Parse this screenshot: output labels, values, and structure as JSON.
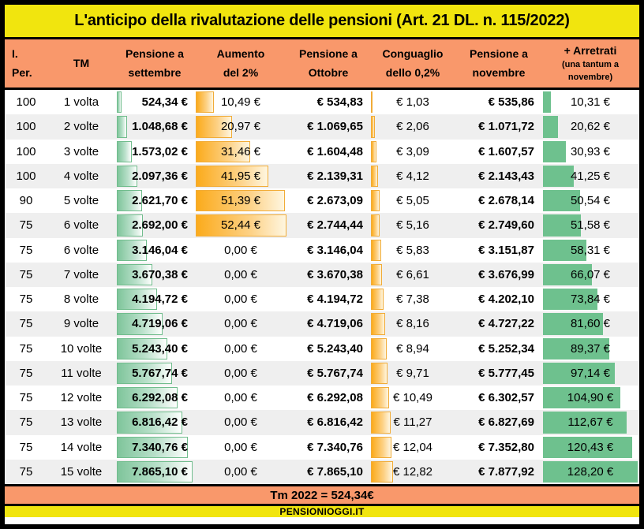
{
  "title": "L'anticipo della rivalutazione delle pensioni (Art. 21 DL. n. 115/2022)",
  "footer": {
    "note": "Tm 2022 = 524,34€",
    "brand": "PENSIONIOGGI.IT"
  },
  "colors": {
    "title_yellow": "#F1E50E",
    "header_salmon": "#F9986B",
    "stripe_gray": "#EFEFEF",
    "green_bar_solid": "#6EC18E",
    "green_bar_border": "#71BD8D",
    "orange_bar": "#FBAB1C",
    "orange_bar_border": "#F1AC38",
    "border_black": "#000000"
  },
  "chart_data": {
    "type": "table",
    "columns": [
      {
        "key": "iper",
        "header_lines": [
          "I.",
          "Per."
        ]
      },
      {
        "key": "tm",
        "header_lines": [
          "TM"
        ]
      },
      {
        "key": "settembre",
        "header_lines": [
          "Pensione a",
          "settembre"
        ]
      },
      {
        "key": "aumento",
        "header_lines": [
          "Aumento",
          "del 2%"
        ]
      },
      {
        "key": "ottobre",
        "header_lines": [
          "Pensione a",
          "Ottobre"
        ]
      },
      {
        "key": "conguaglio",
        "header_lines": [
          "Conguaglio",
          "dello 0,2%"
        ]
      },
      {
        "key": "novembre",
        "header_lines": [
          "Pensione a",
          "novembre"
        ]
      },
      {
        "key": "arretrati",
        "header_lines": [
          "+ Arretrati",
          "(una tantum a",
          "novembre)"
        ],
        "small_lines_from": 1
      }
    ],
    "rows": [
      {
        "iper": "100",
        "tm": "1 volta",
        "settembre": "524,34 €",
        "settembre_v": 524.34,
        "aumento": "10,49 €",
        "aumento_v": 10.49,
        "ottobre": "€ 534,83",
        "conguaglio": "€ 1,03",
        "conguaglio_v": 1.03,
        "novembre": "€ 535,86",
        "arretrati": "10,31 €",
        "arretrati_v": 10.31
      },
      {
        "iper": "100",
        "tm": "2 volte",
        "settembre": "1.048,68 €",
        "settembre_v": 1048.68,
        "aumento": "20,97 €",
        "aumento_v": 20.97,
        "ottobre": "€ 1.069,65",
        "conguaglio": "€ 2,06",
        "conguaglio_v": 2.06,
        "novembre": "€ 1.071,72",
        "arretrati": "20,62 €",
        "arretrati_v": 20.62
      },
      {
        "iper": "100",
        "tm": "3 volte",
        "settembre": "1.573,02 €",
        "settembre_v": 1573.02,
        "aumento": "31,46 €",
        "aumento_v": 31.46,
        "ottobre": "€ 1.604,48",
        "conguaglio": "€ 3,09",
        "conguaglio_v": 3.09,
        "novembre": "€ 1.607,57",
        "arretrati": "30,93 €",
        "arretrati_v": 30.93
      },
      {
        "iper": "100",
        "tm": "4 volte",
        "settembre": "2.097,36 €",
        "settembre_v": 2097.36,
        "aumento": "41,95 €",
        "aumento_v": 41.95,
        "ottobre": "€ 2.139,31",
        "conguaglio": "€ 4,12",
        "conguaglio_v": 4.12,
        "novembre": "€ 2.143,43",
        "arretrati": "41,25 €",
        "arretrati_v": 41.25
      },
      {
        "iper": "90",
        "tm": "5 volte",
        "settembre": "2.621,70 €",
        "settembre_v": 2621.7,
        "aumento": "51,39 €",
        "aumento_v": 51.39,
        "ottobre": "€ 2.673,09",
        "conguaglio": "€ 5,05",
        "conguaglio_v": 5.05,
        "novembre": "€ 2.678,14",
        "arretrati": "50,54 €",
        "arretrati_v": 50.54
      },
      {
        "iper": "75",
        "tm": "6 volte",
        "settembre": "2.692,00 €",
        "settembre_v": 2692.0,
        "aumento": "52,44 €",
        "aumento_v": 52.44,
        "ottobre": "€ 2.744,44",
        "conguaglio": "€ 5,16",
        "conguaglio_v": 5.16,
        "novembre": "€ 2.749,60",
        "arretrati": "51,58 €",
        "arretrati_v": 51.58
      },
      {
        "iper": "75",
        "tm": "6 volte",
        "settembre": "3.146,04 €",
        "settembre_v": 3146.04,
        "aumento": "0,00 €",
        "aumento_v": 0,
        "ottobre": "€ 3.146,04",
        "conguaglio": "€ 5,83",
        "conguaglio_v": 5.83,
        "novembre": "€ 3.151,87",
        "arretrati": "58,31 €",
        "arretrati_v": 58.31
      },
      {
        "iper": "75",
        "tm": "7 volte",
        "settembre": "3.670,38 €",
        "settembre_v": 3670.38,
        "aumento": "0,00 €",
        "aumento_v": 0,
        "ottobre": "€ 3.670,38",
        "conguaglio": "€ 6,61",
        "conguaglio_v": 6.61,
        "novembre": "€ 3.676,99",
        "arretrati": "66,07 €",
        "arretrati_v": 66.07
      },
      {
        "iper": "75",
        "tm": "8 volte",
        "settembre": "4.194,72 €",
        "settembre_v": 4194.72,
        "aumento": "0,00 €",
        "aumento_v": 0,
        "ottobre": "€ 4.194,72",
        "conguaglio": "€ 7,38",
        "conguaglio_v": 7.38,
        "novembre": "€ 4.202,10",
        "arretrati": "73,84 €",
        "arretrati_v": 73.84
      },
      {
        "iper": "75",
        "tm": "9 volte",
        "settembre": "4.719,06 €",
        "settembre_v": 4719.06,
        "aumento": "0,00 €",
        "aumento_v": 0,
        "ottobre": "€ 4.719,06",
        "conguaglio": "€ 8,16",
        "conguaglio_v": 8.16,
        "novembre": "€ 4.727,22",
        "arretrati": "81,60 €",
        "arretrati_v": 81.6
      },
      {
        "iper": "75",
        "tm": "10 volte",
        "settembre": "5.243,40 €",
        "settembre_v": 5243.4,
        "aumento": "0,00 €",
        "aumento_v": 0,
        "ottobre": "€ 5.243,40",
        "conguaglio": "€ 8,94",
        "conguaglio_v": 8.94,
        "novembre": "€ 5.252,34",
        "arretrati": "89,37 €",
        "arretrati_v": 89.37
      },
      {
        "iper": "75",
        "tm": "11 volte",
        "settembre": "5.767,74 €",
        "settembre_v": 5767.74,
        "aumento": "0,00 €",
        "aumento_v": 0,
        "ottobre": "€ 5.767,74",
        "conguaglio": "€ 9,71",
        "conguaglio_v": 9.71,
        "novembre": "€ 5.777,45",
        "arretrati": "97,14 €",
        "arretrati_v": 97.14
      },
      {
        "iper": "75",
        "tm": "12 volte",
        "settembre": "6.292,08 €",
        "settembre_v": 6292.08,
        "aumento": "0,00 €",
        "aumento_v": 0,
        "ottobre": "€ 6.292,08",
        "conguaglio": "€ 10,49",
        "conguaglio_v": 10.49,
        "novembre": "€ 6.302,57",
        "arretrati": "104,90 €",
        "arretrati_v": 104.9
      },
      {
        "iper": "75",
        "tm": "13 volte",
        "settembre": "6.816,42 €",
        "settembre_v": 6816.42,
        "aumento": "0,00 €",
        "aumento_v": 0,
        "ottobre": "€ 6.816,42",
        "conguaglio": "€ 11,27",
        "conguaglio_v": 11.27,
        "novembre": "€ 6.827,69",
        "arretrati": "112,67 €",
        "arretrati_v": 112.67
      },
      {
        "iper": "75",
        "tm": "14 volte",
        "settembre": "7.340,76 €",
        "settembre_v": 7340.76,
        "aumento": "0,00 €",
        "aumento_v": 0,
        "ottobre": "€ 7.340,76",
        "conguaglio": "€ 12,04",
        "conguaglio_v": 12.04,
        "novembre": "€ 7.352,80",
        "arretrati": "120,43 €",
        "arretrati_v": 120.43
      },
      {
        "iper": "75",
        "tm": "15 volte",
        "settembre": "7.865,10 €",
        "settembre_v": 7865.1,
        "aumento": "0,00 €",
        "aumento_v": 0,
        "ottobre": "€ 7.865,10",
        "conguaglio": "€ 12,82",
        "conguaglio_v": 12.82,
        "novembre": "€ 7.877,92",
        "arretrati": "128,20 €",
        "arretrati_v": 128.2
      }
    ]
  }
}
